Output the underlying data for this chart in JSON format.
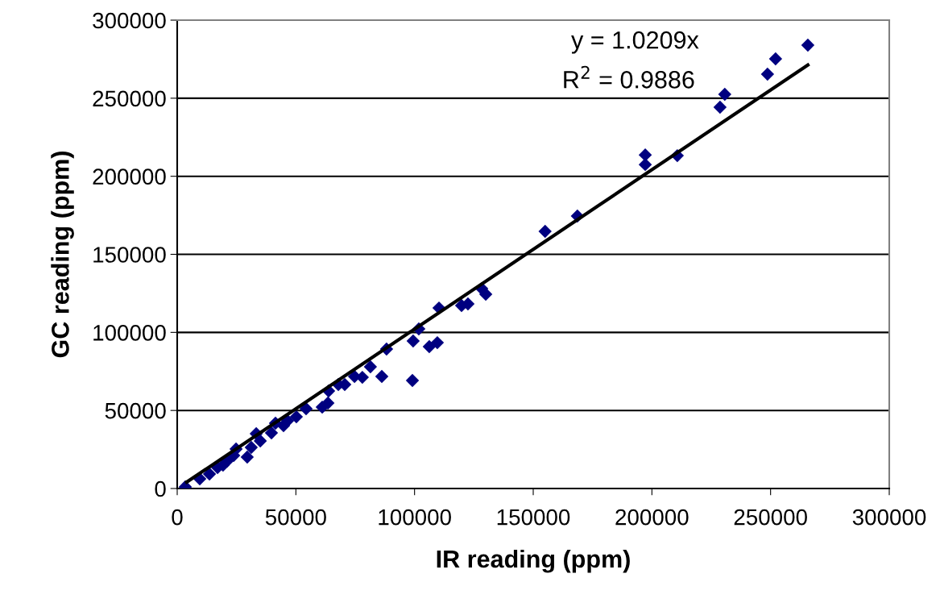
{
  "chart_data": {
    "type": "scatter",
    "xlabel": "IR reading (ppm)",
    "ylabel": "GC reading (ppm)",
    "xlim": [
      0,
      300000
    ],
    "ylim": [
      0,
      300000
    ],
    "xticks": [
      0,
      50000,
      100000,
      150000,
      200000,
      250000,
      300000
    ],
    "yticks": [
      0,
      50000,
      100000,
      150000,
      200000,
      250000,
      300000
    ],
    "grid": "y",
    "annotations": [
      "y = 1.0209x",
      "R$^{2}$ = 0.9886"
    ],
    "series": [
      {
        "color": "#000080",
        "marker": "diamond",
        "x": [
          3400,
          9500,
          13600,
          17000,
          19300,
          21000,
          23800,
          24800,
          29500,
          31200,
          33300,
          35000,
          39700,
          41400,
          44800,
          46500,
          50200,
          54300,
          61100,
          63500,
          63800,
          67900,
          70600,
          74700,
          78000,
          81400,
          86200,
          88200,
          99400,
          99100,
          101800,
          106200,
          109600,
          110300,
          119800,
          122500,
          128300,
          130000,
          155000,
          168600,
          197200,
          197200,
          210700,
          228700,
          230700,
          248700,
          252100,
          265700
        ],
        "values": [
          1000,
          6200,
          9300,
          13400,
          15000,
          17500,
          21200,
          25300,
          20100,
          26300,
          35100,
          30500,
          35600,
          41800,
          40300,
          43400,
          45900,
          51100,
          52100,
          54700,
          62500,
          66600,
          66600,
          71800,
          71200,
          78000,
          71800,
          89300,
          94500,
          69200,
          102200,
          90900,
          93400,
          115600,
          117200,
          118200,
          128000,
          124400,
          164700,
          174500,
          213700,
          207500,
          213200,
          244200,
          252500,
          265400,
          275200,
          284000
        ]
      },
      {
        "type": "line",
        "color": "#000000",
        "marker": "none",
        "x": [
          4000,
          265700
        ],
        "values": [
          4100,
          271300
        ]
      }
    ]
  }
}
